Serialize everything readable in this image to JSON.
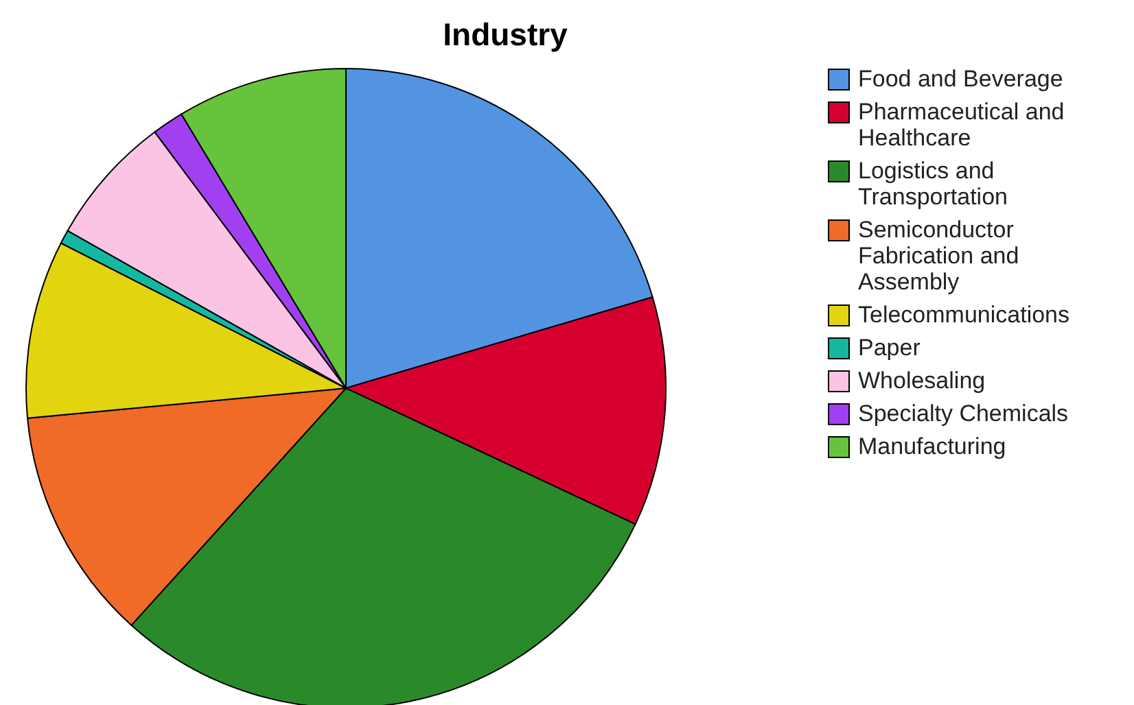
{
  "chart_data": {
    "type": "pie",
    "title": "Industry",
    "legend": "right",
    "categories": [
      "Food and Beverage",
      "Pharmaceutical and Healthcare",
      "Logistics and Transportation",
      "Semiconductor Fabrication and Assembly",
      "Telecommunications",
      "Paper",
      "Wholesaling",
      "Specialty Chemicals",
      "Manufacturing"
    ],
    "values": [
      20.4,
      11.6,
      29.7,
      11.8,
      9.0,
      0.7,
      6.6,
      1.6,
      8.6
    ],
    "colors": [
      "#5294e2",
      "#d6002f",
      "#2a8a2a",
      "#f06a28",
      "#e2d510",
      "#14b8a0",
      "#fcc4e4",
      "#a040f0",
      "#66c43c"
    ]
  }
}
